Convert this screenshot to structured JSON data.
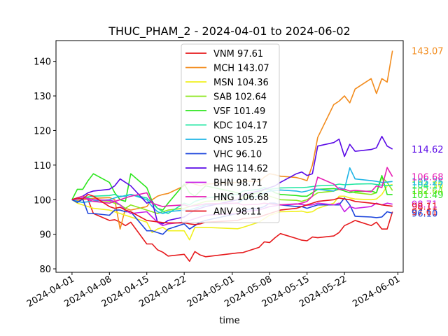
{
  "chart_data": {
    "type": "line",
    "title": "THUC_PHAM_2 - 2024-04-01 to 2024-06-02",
    "xlabel": "time",
    "ylabel": "",
    "xlim": [
      "2024-03-29",
      "2024-06-02"
    ],
    "ylim": [
      79,
      146
    ],
    "xticks": [
      "2024-04-01",
      "2024-04-08",
      "2024-04-15",
      "2024-04-22",
      "2024-05-01",
      "2024-05-08",
      "2024-05-15",
      "2024-05-22",
      "2024-06-01"
    ],
    "yticks": [
      80,
      90,
      100,
      110,
      120,
      130,
      140
    ],
    "grid": false,
    "legend_position": "top-center",
    "dates": [
      "2024-04-01",
      "2024-04-02",
      "2024-04-03",
      "2024-04-04",
      "2024-04-05",
      "2024-04-08",
      "2024-04-09",
      "2024-04-10",
      "2024-04-11",
      "2024-04-12",
      "2024-04-15",
      "2024-04-16",
      "2024-04-17",
      "2024-04-18",
      "2024-04-19",
      "2024-04-22",
      "2024-04-23",
      "2024-04-24",
      "2024-04-25",
      "2024-04-26",
      "2024-05-02",
      "2024-05-03",
      "2024-05-06",
      "2024-05-07",
      "2024-05-08",
      "2024-05-09",
      "2024-05-10",
      "2024-05-13",
      "2024-05-14",
      "2024-05-15",
      "2024-05-16",
      "2024-05-17",
      "2024-05-20",
      "2024-05-21",
      "2024-05-22",
      "2024-05-23",
      "2024-05-24",
      "2024-05-27",
      "2024-05-28",
      "2024-05-29",
      "2024-05-30",
      "2024-05-31"
    ],
    "series": [
      {
        "name": "VNM",
        "label": "VNM 97.61",
        "color": "#e6191c",
        "last": "97.61",
        "values": [
          100,
          100.5,
          101,
          100,
          96,
          94,
          94.2,
          93.5,
          92.5,
          93.5,
          87.2,
          87.2,
          85.5,
          84.8,
          83.7,
          84.2,
          82.2,
          85,
          84,
          83.5,
          84.6,
          84.7,
          86.2,
          87.8,
          87.6,
          89,
          90.2,
          88.8,
          88.3,
          88.1,
          89.2,
          89,
          89.5,
          90.5,
          92.5,
          93.2,
          94,
          92.5,
          93.5,
          91.5,
          91.5,
          96.5
        ]
      },
      {
        "name": "MCH",
        "label": "MCH 143.07",
        "color": "#f28c1e",
        "last": "143.07",
        "values": [
          100,
          99.8,
          100,
          100.2,
          100.4,
          100.6,
          100,
          91.5,
          97.5,
          97,
          98,
          100,
          101,
          101.5,
          101.8,
          104,
          105,
          104.5,
          104,
          104.5,
          105,
          105.5,
          105.2,
          106.5,
          107.5,
          107.2,
          106.8,
          106.4,
          106,
          105.5,
          110,
          118,
          127.5,
          128.5,
          130,
          128,
          132,
          135,
          130.7,
          135,
          134,
          143.07
        ]
      },
      {
        "name": "MSN",
        "label": "MSN 104.36",
        "color": "#f0f01e",
        "last": "104.36",
        "values": [
          100,
          99,
          98.5,
          98,
          97.5,
          97,
          96.5,
          96,
          95.5,
          95,
          93.5,
          90.5,
          91.5,
          92,
          91,
          91,
          88.4,
          92,
          92,
          92,
          91.6,
          92,
          93.5,
          94.5,
          95.5,
          96,
          96.5,
          96.6,
          96.7,
          96.3,
          96.5,
          97.5,
          99,
          101,
          101,
          100.5,
          100.2,
          100,
          100.2,
          101.5,
          104,
          104.36
        ]
      },
      {
        "name": "SAB",
        "label": "SAB 102.64",
        "color": "#8ce61e",
        "last": "102.64",
        "values": [
          100,
          100.5,
          101,
          100.5,
          100,
          99.5,
          99,
          98.5,
          97.5,
          98.5,
          97,
          96.5,
          96,
          96.5,
          97,
          97.5,
          98,
          98.5,
          99,
          99.5,
          100,
          100.5,
          101,
          101.5,
          101,
          100.5,
          100,
          99.8,
          99.5,
          100,
          101,
          102,
          102.5,
          103,
          103,
          102.5,
          102,
          101.5,
          102,
          106.5,
          105,
          102.64
        ]
      },
      {
        "name": "VSF",
        "label": "VSF 101.49",
        "color": "#2de61e",
        "last": "101.49",
        "values": [
          100,
          103,
          103,
          105.5,
          107.5,
          105,
          102,
          100,
          99.5,
          107.5,
          103.5,
          99.5,
          97.5,
          97,
          99,
          104.5,
          102,
          101,
          102.5,
          104,
          102,
          101,
          102,
          103,
          103,
          102,
          101.5,
          101.2,
          101,
          101,
          102,
          103,
          103.2,
          103,
          102.5,
          102,
          102.3,
          102.5,
          102,
          107,
          101.5,
          101.49
        ]
      },
      {
        "name": "KDC",
        "label": "KDC 104.17",
        "color": "#1ee6a0",
        "last": "104.17",
        "values": [
          100,
          100.2,
          100.5,
          100.8,
          101,
          101.2,
          101.5,
          100.8,
          101.2,
          101.5,
          100.5,
          99,
          97.5,
          96.5,
          96,
          99,
          98.5,
          99.5,
          100,
          100.5,
          101.5,
          102.5,
          103,
          103.5,
          103,
          103.2,
          103.4,
          103.5,
          103.5,
          103.6,
          103.8,
          104,
          104.2,
          104.5,
          104.3,
          104.4,
          104.5,
          104.6,
          104.4,
          104.2,
          104.1,
          104.17
        ]
      },
      {
        "name": "QNS",
        "label": "QNS 105.25",
        "color": "#1eb4e6",
        "last": "105.25",
        "values": [
          100,
          99.5,
          99.2,
          99.4,
          99.6,
          100,
          100.5,
          101,
          101,
          101.5,
          100,
          98,
          96.5,
          96,
          96.5,
          97,
          97,
          97.5,
          98,
          98.5,
          99,
          100,
          101,
          102,
          102.5,
          102.6,
          102.8,
          102.5,
          102.2,
          102.5,
          103,
          103,
          102.5,
          103.5,
          103,
          109.2,
          106,
          105.5,
          105.3,
          105,
          105.1,
          105.25
        ]
      },
      {
        "name": "VHC",
        "label": "VHC 96.10",
        "color": "#1e46dc",
        "last": "96.10",
        "values": [
          100,
          99.2,
          100.2,
          96,
          96,
          95.5,
          97,
          97,
          96.5,
          96.5,
          91,
          91,
          90.5,
          90,
          91.5,
          93,
          91.5,
          92.5,
          93.5,
          94,
          96,
          97,
          97.5,
          98,
          99,
          99,
          98.5,
          98,
          98,
          97.5,
          98,
          98.5,
          98.5,
          98.5,
          100.5,
          98.5,
          95.2,
          95,
          94.8,
          95,
          96.5,
          96.1
        ]
      },
      {
        "name": "HAG",
        "label": "HAG 114.62",
        "color": "#5a0ae6",
        "last": "114.62",
        "values": [
          100,
          100.5,
          101,
          102,
          102.5,
          103,
          104,
          106,
          105,
          104,
          99,
          99.5,
          93.5,
          93,
          94,
          95,
          96,
          97,
          97.5,
          98,
          100,
          101.5,
          102.5,
          103,
          103.5,
          104,
          105,
          107.5,
          108,
          107,
          107.5,
          115.5,
          116.5,
          117.5,
          112.5,
          116,
          114,
          114.5,
          115,
          118.3,
          115.5,
          114.62
        ]
      },
      {
        "name": "BHN",
        "label": "BHN 98.71",
        "color": "#c81ee6",
        "last": "98.71",
        "values": [
          100,
          100.2,
          100.5,
          100.3,
          100,
          99.8,
          99.5,
          98.5,
          97,
          96,
          96.5,
          95,
          93.5,
          92.5,
          93,
          93.5,
          94,
          94.5,
          95,
          95.5,
          96,
          96.5,
          97,
          97.5,
          98,
          98.2,
          98.5,
          98.8,
          98.6,
          98.4,
          98.5,
          99,
          98.5,
          99,
          96.5,
          98,
          97.5,
          98,
          99,
          98.5,
          99,
          98.71
        ]
      },
      {
        "name": "HNG",
        "label": "HNG 106.68",
        "color": "#e61eb4",
        "last": "106.68",
        "values": [
          100,
          100.5,
          101,
          100,
          99.5,
          99,
          99.5,
          100,
          100.5,
          101,
          102,
          99,
          98.5,
          98,
          98.2,
          98.5,
          98,
          98.3,
          98.5,
          98.8,
          99,
          98.5,
          98.7,
          99,
          98.8,
          98.6,
          98.5,
          98.7,
          99,
          99.5,
          101,
          106.5,
          104.5,
          103,
          103,
          102.5,
          102.7,
          102.3,
          104,
          103.5,
          109.3,
          106.68
        ]
      },
      {
        "name": "ANV",
        "label": "ANV 98.11",
        "color": "#e6141e",
        "last": "98.11",
        "values": [
          100,
          100.5,
          100.2,
          101.5,
          101,
          98,
          97.5,
          97.8,
          97,
          96.5,
          94,
          93.8,
          93.6,
          93.4,
          93.3,
          93.3,
          93,
          92.8,
          93,
          93.5,
          94,
          94.5,
          95,
          95.5,
          96,
          96.5,
          97,
          97.5,
          98,
          98.5,
          99,
          99.5,
          100,
          100.5,
          100.2,
          100,
          99.5,
          99,
          98.8,
          98.5,
          98.3,
          98.11
        ]
      }
    ]
  }
}
